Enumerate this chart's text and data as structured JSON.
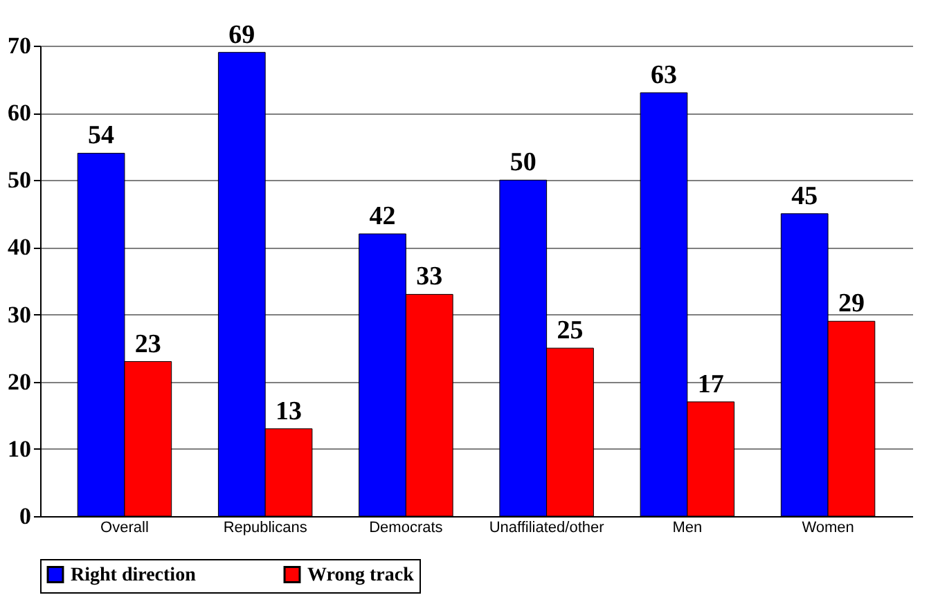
{
  "chart_data": {
    "type": "bar",
    "categories": [
      "Overall",
      "Republicans",
      "Democrats",
      "Unaffiliated/other",
      "Men",
      "Women"
    ],
    "series": [
      {
        "name": "Right direction",
        "color": "#0000ff",
        "values": [
          54,
          69,
          42,
          50,
          63,
          45
        ]
      },
      {
        "name": "Wrong track",
        "color": "#ff0000",
        "values": [
          23,
          13,
          33,
          25,
          17,
          29
        ]
      }
    ],
    "ylim": [
      0,
      70
    ],
    "yticks": [
      0,
      10,
      20,
      30,
      40,
      50,
      60,
      70
    ],
    "grid": "y",
    "legend": "bottom",
    "data_labels": true
  }
}
